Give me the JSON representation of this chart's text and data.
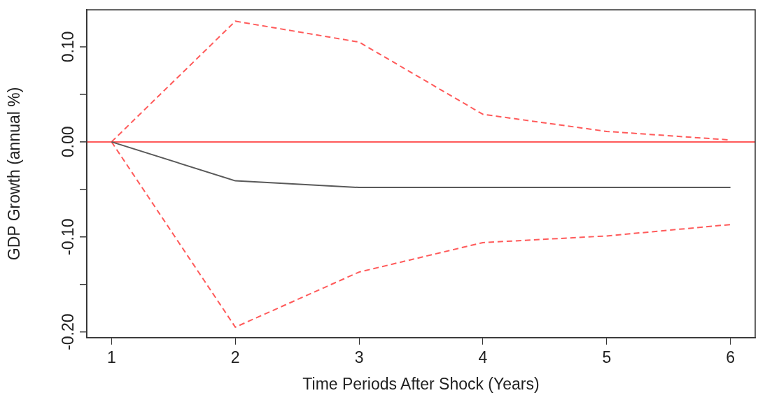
{
  "chart_data": {
    "type": "line",
    "xlabel": "Time Periods After Shock (Years)",
    "ylabel": "GDP Growth (annual %)",
    "x": [
      1,
      2,
      3,
      4,
      5,
      6
    ],
    "series": [
      {
        "color": "#595959",
        "line_style": "solid",
        "values": [
          0,
          -0.041,
          -0.048,
          -0.048,
          -0.048,
          -0.048
        ]
      },
      {
        "color": "#ff5a5a",
        "line_style": "dashed",
        "values": [
          0,
          0.127,
          0.105,
          0.029,
          0.011,
          0.002
        ]
      },
      {
        "color": "#ff5a5a",
        "line_style": "dashed",
        "values": [
          0,
          -0.195,
          -0.137,
          -0.106,
          -0.099,
          -0.087
        ]
      }
    ],
    "xlim": [
      0.8,
      6.2
    ],
    "xticks": [
      1,
      2,
      3,
      4,
      5,
      6
    ],
    "ylim": [
      -0.206,
      0.139
    ],
    "yticks": [
      {
        "value": -0.2,
        "label": "-0.20"
      },
      {
        "value": -0.15,
        "label": null
      },
      {
        "value": -0.1,
        "label": "-0.10"
      },
      {
        "value": -0.05,
        "label": null
      },
      {
        "value": 0,
        "label": "0.00"
      },
      {
        "value": 0.05,
        "label": null
      },
      {
        "value": 0.1,
        "label": "0.10"
      }
    ],
    "ref_lines": [
      {
        "axis": "y",
        "value": 0,
        "color": "#ff5a5a",
        "line_style": "solid"
      }
    ],
    "grid": false,
    "legend": false,
    "marker": "none"
  }
}
